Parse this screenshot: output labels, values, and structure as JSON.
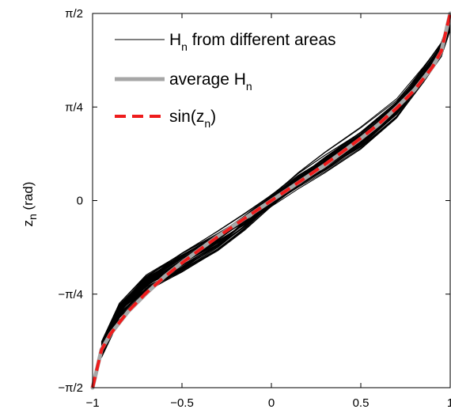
{
  "chart_data": {
    "type": "line",
    "title": "",
    "xlabel": "",
    "ylabel": "z_n (rad)",
    "ylabel_main": "z",
    "ylabel_sub": "n",
    "ylabel_unit": "(rad)",
    "xlim": [
      -1,
      1
    ],
    "ylim": [
      -1.5708,
      1.5708
    ],
    "x_ticks": [
      -1,
      -0.5,
      0,
      0.5,
      1
    ],
    "x_tick_labels": [
      "−1",
      "−0.5",
      "0",
      "0.5",
      "1"
    ],
    "y_ticks": [
      -1.5708,
      -0.7854,
      0,
      0.7854,
      1.5708
    ],
    "y_tick_labels": [
      "−π/2",
      "−π/4",
      "0",
      "π/4",
      "π/2"
    ],
    "grid": false,
    "legend_position": "top-left",
    "legend": [
      {
        "main": "H",
        "sub": "n",
        "rest": " from different areas",
        "style": "thin-black"
      },
      {
        "main": "average H",
        "sub": "n",
        "rest": "",
        "style": "thick-gray"
      },
      {
        "main": "sin(z",
        "sub": "n",
        "rest": ")",
        "style": "dashed-red"
      }
    ],
    "series": [
      {
        "name": "H_n from different areas",
        "color": "#000000",
        "x": [
          -0.95,
          -0.85,
          -0.7,
          -0.5,
          -0.3,
          -0.15,
          0,
          0.15,
          0.3,
          0.5,
          0.7,
          0.85,
          0.95,
          1.0
        ],
        "y": [
          -1.25,
          -0.93,
          -0.7,
          -0.52,
          -0.34,
          -0.18,
          0.0,
          0.17,
          0.32,
          0.52,
          0.77,
          1.06,
          1.27,
          1.5
        ]
      },
      {
        "name": "average H_n",
        "color": "#a6a6a6",
        "x": [
          -1.0,
          -0.95,
          -0.9,
          -0.8,
          -0.7,
          -0.6,
          -0.5,
          -0.4,
          -0.3,
          -0.2,
          -0.1,
          0,
          0.1,
          0.2,
          0.3,
          0.4,
          0.5,
          0.6,
          0.7,
          0.8,
          0.9,
          0.95,
          1.0
        ],
        "y": [
          -1.5708,
          -1.25,
          -1.12,
          -0.93,
          -0.78,
          -0.64,
          -0.52,
          -0.41,
          -0.3,
          -0.2,
          -0.1,
          0.0,
          0.1,
          0.2,
          0.3,
          0.41,
          0.52,
          0.64,
          0.78,
          0.93,
          1.12,
          1.25,
          1.5708
        ]
      },
      {
        "name": "sin(z_n)",
        "color": "#ee1c1c",
        "x": [
          -1.0,
          -0.95,
          -0.9,
          -0.8,
          -0.7,
          -0.6,
          -0.5,
          -0.4,
          -0.3,
          -0.2,
          -0.1,
          0,
          0.1,
          0.2,
          0.3,
          0.4,
          0.5,
          0.6,
          0.7,
          0.8,
          0.9,
          0.95,
          1.0
        ],
        "y": [
          -1.5708,
          -1.2532,
          -1.1198,
          -0.9273,
          -0.7754,
          -0.6435,
          -0.5236,
          -0.4115,
          -0.3047,
          -0.2014,
          -0.1002,
          0.0,
          0.1002,
          0.2014,
          0.3047,
          0.4115,
          0.5236,
          0.6435,
          0.7754,
          0.9273,
          1.1198,
          1.2532,
          1.5708
        ]
      }
    ]
  }
}
